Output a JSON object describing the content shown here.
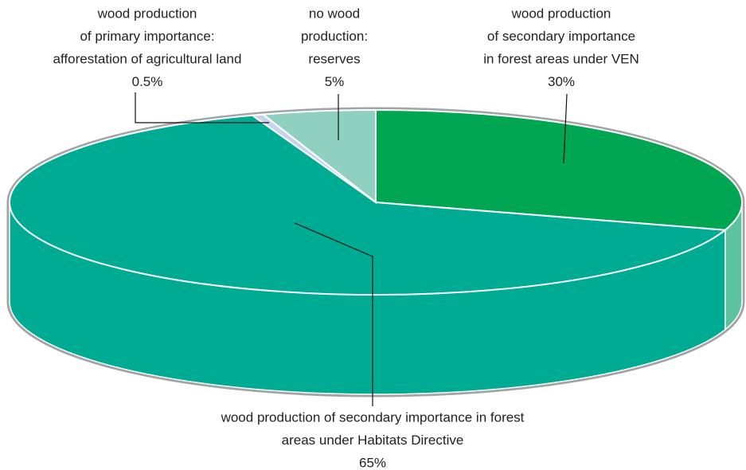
{
  "chart_data": {
    "type": "pie3d",
    "categories": [
      [
        "wood production",
        "of secondary importance",
        "in forest areas under VEN"
      ],
      [
        "wood production of secondary importance in forest",
        "areas under Habitats Directive"
      ],
      [
        "wood production",
        "of primary importance:",
        "afforestation of agricultural land"
      ],
      [
        "no wood",
        "production:",
        "reserves"
      ]
    ],
    "values": [
      30,
      65,
      0.5,
      5
    ],
    "value_labels": [
      "30%",
      "65%",
      "0.5%",
      "5%"
    ],
    "colors": [
      "#00a651",
      "#00ab93",
      "#c8d2ec",
      "#8fd0c1"
    ],
    "side_colors": [
      "#5cc2a0",
      "#00ab93",
      "#c8d2ec",
      "#8fd0c1"
    ]
  }
}
